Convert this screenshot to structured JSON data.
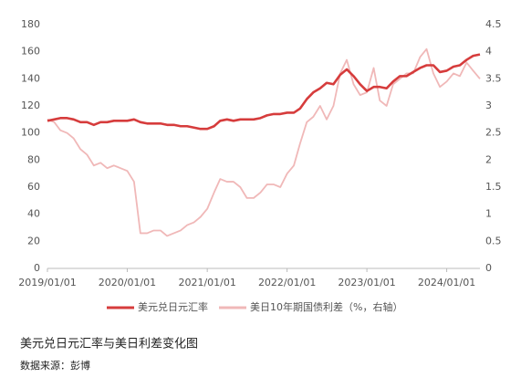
{
  "chart_data": {
    "type": "line",
    "title": "美元兑日元汇率与美日利差变化图",
    "source": "数据来源：彭博",
    "x": [
      "2019/01/01",
      "2019/02/01",
      "2019/03/01",
      "2019/04/01",
      "2019/05/01",
      "2019/06/01",
      "2019/07/01",
      "2019/08/01",
      "2019/09/01",
      "2019/10/01",
      "2019/11/01",
      "2019/12/01",
      "2020/01/01",
      "2020/02/01",
      "2020/03/01",
      "2020/04/01",
      "2020/05/01",
      "2020/06/01",
      "2020/07/01",
      "2020/08/01",
      "2020/09/01",
      "2020/10/01",
      "2020/11/01",
      "2020/12/01",
      "2021/01/01",
      "2021/02/01",
      "2021/03/01",
      "2021/04/01",
      "2021/05/01",
      "2021/06/01",
      "2021/07/01",
      "2021/08/01",
      "2021/09/01",
      "2021/10/01",
      "2021/11/01",
      "2021/12/01",
      "2022/01/01",
      "2022/02/01",
      "2022/03/01",
      "2022/04/01",
      "2022/05/01",
      "2022/06/01",
      "2022/07/01",
      "2022/08/01",
      "2022/09/01",
      "2022/10/01",
      "2022/11/01",
      "2022/12/01",
      "2023/01/01",
      "2023/02/01",
      "2023/03/01",
      "2023/04/01",
      "2023/05/01",
      "2023/06/01",
      "2023/07/01",
      "2023/08/01",
      "2023/09/01",
      "2023/10/01",
      "2023/11/01",
      "2023/12/01",
      "2024/01/01",
      "2024/02/01",
      "2024/03/01",
      "2024/04/01",
      "2024/05/01",
      "2024/06/01"
    ],
    "series": [
      {
        "name": "美元兑日元汇率",
        "color": "#d63c3c",
        "values": [
          109,
          110,
          111,
          111,
          110,
          108,
          108,
          106,
          108,
          108,
          109,
          109,
          109,
          110,
          108,
          107,
          107,
          107,
          106,
          106,
          105,
          105,
          104,
          103,
          103,
          105,
          109,
          110,
          109,
          110,
          110,
          110,
          111,
          113,
          114,
          114,
          115,
          115,
          118,
          125,
          130,
          133,
          137,
          136,
          143,
          147,
          142,
          136,
          131,
          134,
          134,
          133,
          138,
          142,
          142,
          145,
          148,
          150,
          150,
          145,
          146,
          149,
          150,
          154,
          157,
          158
        ]
      },
      {
        "name": "美日10年期国债利差（%，右轴）",
        "color": "#f0b8b8",
        "axis": "y2",
        "values": [
          2.75,
          2.7,
          2.55,
          2.5,
          2.4,
          2.2,
          2.1,
          1.9,
          1.95,
          1.85,
          1.9,
          1.85,
          1.8,
          1.6,
          0.65,
          0.65,
          0.7,
          0.7,
          0.6,
          0.65,
          0.7,
          0.8,
          0.85,
          0.95,
          1.1,
          1.4,
          1.65,
          1.6,
          1.6,
          1.5,
          1.3,
          1.3,
          1.4,
          1.55,
          1.55,
          1.5,
          1.75,
          1.9,
          2.3,
          2.7,
          2.8,
          3.0,
          2.75,
          3.0,
          3.6,
          3.85,
          3.4,
          3.2,
          3.25,
          3.7,
          3.1,
          3.0,
          3.4,
          3.5,
          3.6,
          3.6,
          3.9,
          4.05,
          3.6,
          3.35,
          3.45,
          3.6,
          3.55,
          3.8,
          3.65,
          3.5
        ]
      }
    ],
    "xlim": [
      "2019/01/01",
      "2024/06/01"
    ],
    "xticks": [
      "2019/01/01",
      "2020/01/01",
      "2021/01/01",
      "2022/01/01",
      "2023/01/01",
      "2024/01/01"
    ],
    "ylim": [
      0,
      180
    ],
    "yticks": [
      0,
      20,
      40,
      60,
      80,
      100,
      120,
      140,
      160,
      180
    ],
    "y2lim": [
      0,
      4.5
    ],
    "y2ticks": [
      0,
      0.5,
      1,
      1.5,
      2,
      2.5,
      3,
      3.5,
      4,
      4.5
    ],
    "legend": "bottom"
  }
}
